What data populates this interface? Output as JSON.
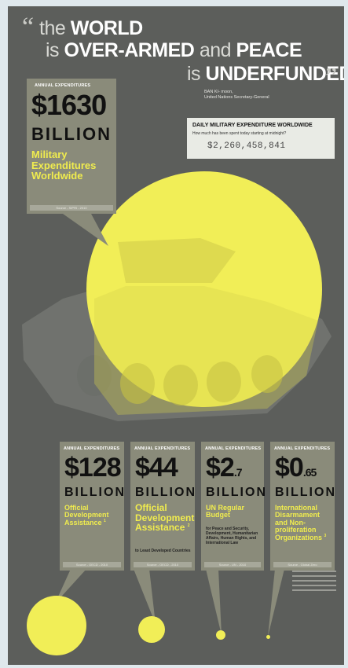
{
  "quote": {
    "open_mark": "“",
    "line1_light": "the",
    "line1_bold": "WORLD",
    "line2_light": "is",
    "line2_bold1": "OVER-ARMED",
    "line2_mid": "and",
    "line2_bold2": "PEACE",
    "line3_light": "is",
    "line3_bold": "UNDERFUNDED",
    "close_mark": "”",
    "attribution_name": "BAN KI- moon,",
    "attribution_title": "United Nations Secretary-General"
  },
  "counter": {
    "title": "DAILY MILITARY EXPENDITURE WORLDWIDE",
    "subtitle": "How much has been spent today starting at midnight?",
    "value": "$2,260,458,841"
  },
  "main_box": {
    "label": "ANNUAL EXPENDITURES",
    "amount": "$1630",
    "unit": "BILLION",
    "description": "Military Expenditures Worldwide",
    "source": "Source - SIPRI - 2010"
  },
  "boxes": [
    {
      "label": "ANNUAL EXPENDITURES",
      "amount": "$128",
      "amount_small": "",
      "unit": "BILLION",
      "description": "Official Development Assistance",
      "sup": "1",
      "sub": "",
      "source": "Source - OECD - 2010"
    },
    {
      "label": "ANNUAL EXPENDITURES",
      "amount": "$44",
      "amount_small": "",
      "unit": "BILLION",
      "description": "Official Development Assistance",
      "sup": "2",
      "sub": "to Least Developed Countries",
      "source": "Source - OECD - 2010"
    },
    {
      "label": "ANNUAL EXPENDITURES",
      "amount": "$2",
      "amount_small": ".7",
      "unit": "BILLION",
      "description": "UN Regular Budget",
      "sup": "",
      "sub": "for Peace and Security, Development, Humanitarian Affairs, Human Rights, and International Law",
      "source": "Source - UN - 2010"
    },
    {
      "label": "ANNUAL EXPENDITURES",
      "amount": "$0",
      "amount_small": ".65",
      "unit": "BILLION",
      "description": "International Disarmament and Non-proliferation Organizations",
      "sup": "3",
      "sub": "",
      "source": "Source - Global Zero"
    }
  ],
  "colors": {
    "background": "#5c5e5b",
    "accent_yellow": "#f1ee57",
    "box": "#8a8b7a"
  }
}
